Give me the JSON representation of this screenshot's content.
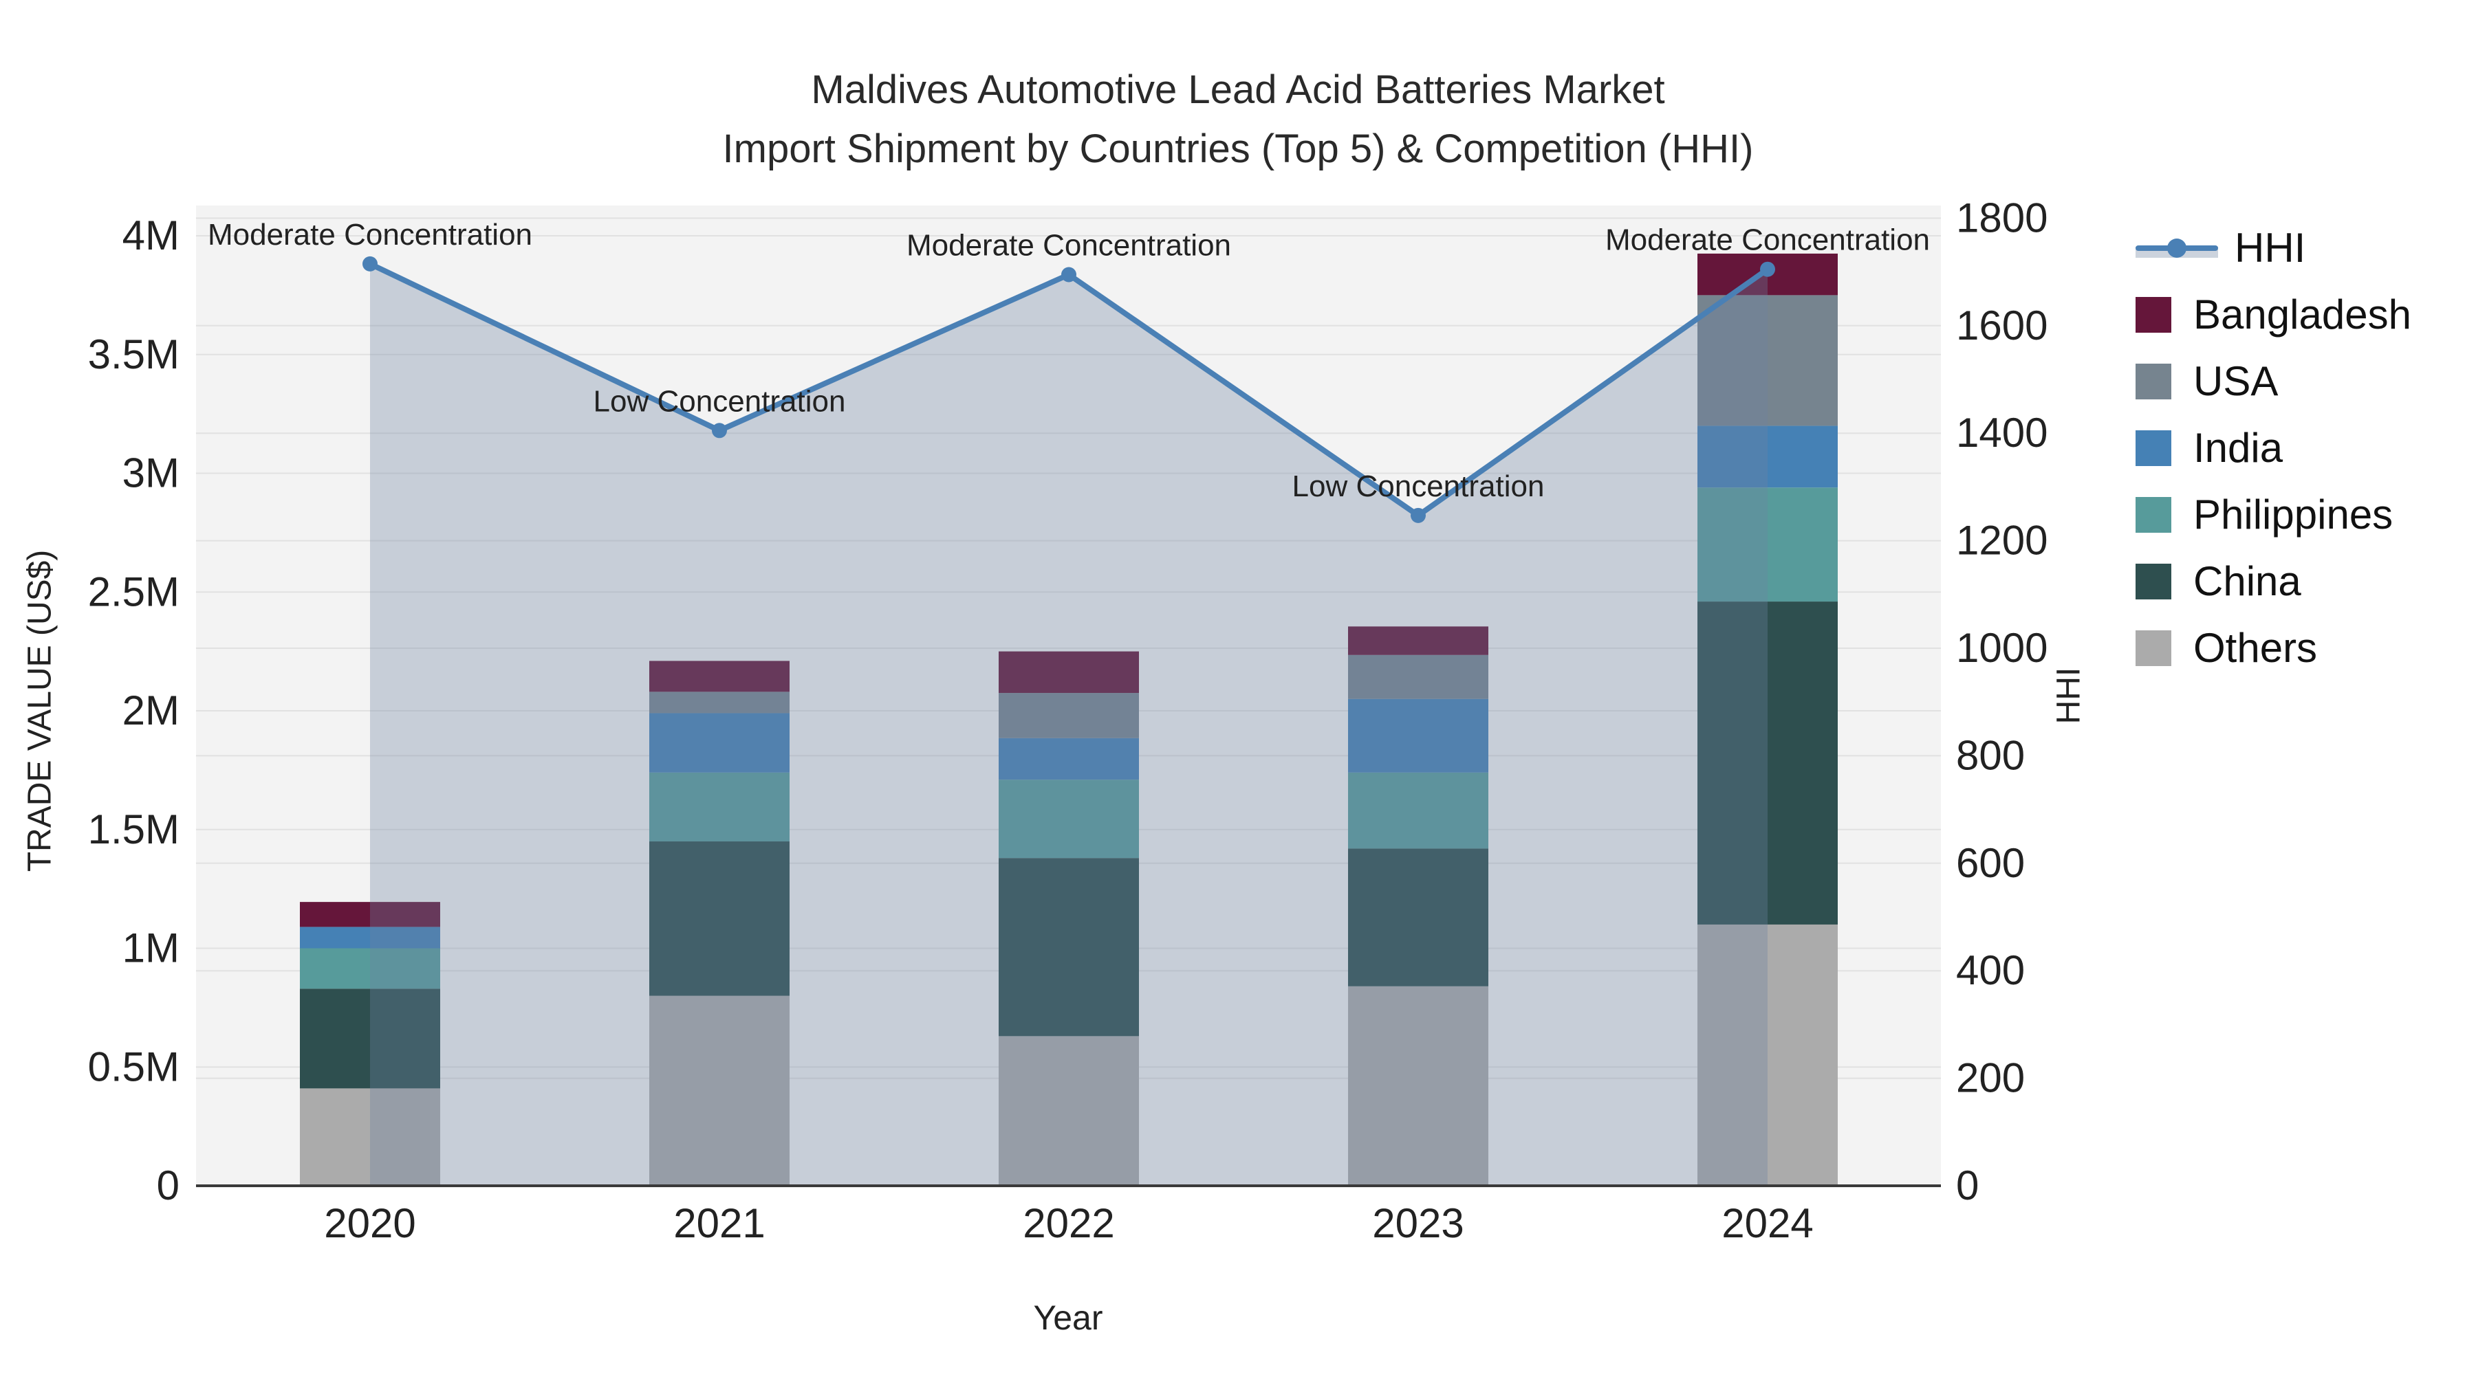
{
  "title": {
    "line1": "Maldives Automotive Lead Acid Batteries Market",
    "line2": "Import Shipment by Countries (Top 5) & Competition (HHI)"
  },
  "axes": {
    "x": {
      "title": "Year",
      "ticks": [
        "2020",
        "2021",
        "2022",
        "2023",
        "2024"
      ]
    },
    "y_left": {
      "title": "TRADE VALUE (US$)",
      "ticks": [
        "0",
        "0.5M",
        "1M",
        "1.5M",
        "2M",
        "2.5M",
        "3M",
        "3.5M",
        "4M"
      ]
    },
    "y_right": {
      "title": "HHI",
      "ticks": [
        "0",
        "200",
        "400",
        "600",
        "800",
        "1000",
        "1200",
        "1400",
        "1600",
        "1800"
      ]
    }
  },
  "legend": {
    "items": [
      {
        "label": "HHI",
        "type": "line",
        "color": "#4A80B5"
      },
      {
        "label": "Bangladesh",
        "type": "swatch",
        "color": "#65163A"
      },
      {
        "label": "USA",
        "type": "swatch",
        "color": "#76848F"
      },
      {
        "label": "India",
        "type": "swatch",
        "color": "#4581B5"
      },
      {
        "label": "Philippines",
        "type": "swatch",
        "color": "#579B9B"
      },
      {
        "label": "China",
        "type": "swatch",
        "color": "#2E4F4F"
      },
      {
        "label": "Others",
        "type": "swatch",
        "color": "#ABABAB"
      }
    ]
  },
  "chart_data": {
    "type": "bar+line",
    "categories": [
      "2020",
      "2021",
      "2022",
      "2023",
      "2024"
    ],
    "bar_value_unit": "million US$",
    "bar_stack_order_bottom_to_top": [
      "Others",
      "China",
      "Philippines",
      "India",
      "USA",
      "Bangladesh"
    ],
    "series": [
      {
        "name": "Others",
        "color": "#ABABAB",
        "values": [
          0.41,
          0.8,
          0.63,
          0.84,
          1.1
        ]
      },
      {
        "name": "China",
        "color": "#2E4F4F",
        "values": [
          0.42,
          0.65,
          0.75,
          0.58,
          1.36
        ]
      },
      {
        "name": "Philippines",
        "color": "#579B9B",
        "values": [
          0.17,
          0.29,
          0.33,
          0.32,
          0.48
        ]
      },
      {
        "name": "India",
        "color": "#4581B5",
        "values": [
          0.09,
          0.25,
          0.175,
          0.31,
          0.26
        ]
      },
      {
        "name": "USA",
        "color": "#76848F",
        "values": [
          0.0,
          0.09,
          0.19,
          0.185,
          0.55
        ]
      },
      {
        "name": "Bangladesh",
        "color": "#65163A",
        "values": [
          0.105,
          0.13,
          0.175,
          0.12,
          0.175
        ]
      }
    ],
    "line_series": {
      "name": "HHI",
      "color": "#4A80B5",
      "values": [
        1715,
        1405,
        1695,
        1247,
        1705
      ],
      "area_fill": "rgba(108,130,160,0.33)"
    },
    "annotations": [
      {
        "x": "2020",
        "text": "Moderate Concentration"
      },
      {
        "x": "2021",
        "text": "Low Concentration"
      },
      {
        "x": "2022",
        "text": "Moderate Concentration"
      },
      {
        "x": "2023",
        "text": "Low Concentration"
      },
      {
        "x": "2024",
        "text": "Moderate Concentration"
      }
    ],
    "ylim_left": [
      0,
      4
    ],
    "ylim_right": [
      0,
      1800
    ],
    "grid": true,
    "legend_position": "right"
  },
  "colors": {
    "plot_bg": "#F3F3F3",
    "grid": "#E1E1E1",
    "axis_line": "#3A3A3A",
    "text": "#222222"
  }
}
